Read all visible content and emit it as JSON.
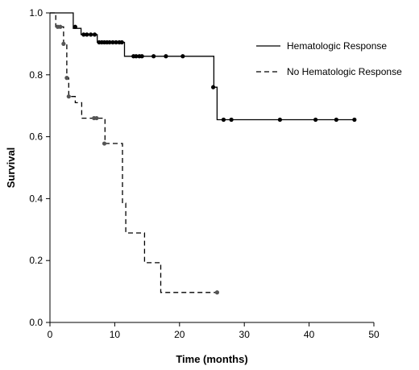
{
  "chart_data": {
    "type": "line",
    "title": "",
    "xlabel": "Time (months)",
    "ylabel": "Survival",
    "xlim": [
      0,
      50
    ],
    "ylim": [
      0,
      1.0
    ],
    "xticks": [
      0,
      10,
      20,
      30,
      40,
      50
    ],
    "yticks": [
      0.0,
      0.2,
      0.4,
      0.6,
      0.8,
      1.0
    ],
    "xtick_labels": [
      "0",
      "10",
      "20",
      "30",
      "40",
      "50"
    ],
    "ytick_labels": [
      "0.0",
      "0.2",
      "0.4",
      "0.6",
      "0.8",
      "1.0"
    ],
    "grid": false,
    "legend_position": "top-right",
    "series": [
      {
        "name": "Hematologic Response",
        "style": "solid",
        "color": "#000000",
        "step_x": [
          0,
          3.6,
          3.6,
          4.8,
          4.8,
          7.3,
          7.3,
          11.5,
          11.5,
          25.3,
          25.3,
          25.8,
          25.8,
          47
        ],
        "step_y": [
          1.0,
          1.0,
          0.95,
          0.95,
          0.93,
          0.93,
          0.905,
          0.905,
          0.86,
          0.86,
          0.76,
          0.76,
          0.655,
          0.655
        ],
        "censor_x": [
          3.9,
          5.2,
          5.7,
          6.3,
          6.9,
          7.6,
          8.0,
          8.4,
          8.8,
          9.2,
          9.7,
          10.2,
          10.7,
          11.1,
          12.9,
          13.3,
          13.8,
          14.2,
          16.0,
          17.9,
          20.5,
          25.2,
          26.8,
          28.0,
          35.5,
          41.0,
          44.2,
          47.0
        ],
        "censor_y": [
          0.955,
          0.93,
          0.93,
          0.93,
          0.93,
          0.905,
          0.905,
          0.905,
          0.905,
          0.905,
          0.905,
          0.905,
          0.905,
          0.905,
          0.86,
          0.86,
          0.86,
          0.86,
          0.86,
          0.86,
          0.86,
          0.76,
          0.655,
          0.655,
          0.655,
          0.655,
          0.655,
          0.655
        ]
      },
      {
        "name": "No Hematologic Response",
        "style": "dashed",
        "color": "#000000",
        "step_x": [
          0,
          0.9,
          0.9,
          2.1,
          2.1,
          2.6,
          2.6,
          2.9,
          2.9,
          3.9,
          3.9,
          4.9,
          4.9,
          6.5,
          6.5,
          8.5,
          8.5,
          11.2,
          11.2,
          11.7,
          11.7,
          14.6,
          14.6,
          17.1,
          17.1,
          25.8
        ],
        "step_y": [
          1.0,
          1.0,
          0.955,
          0.955,
          0.9,
          0.9,
          0.79,
          0.79,
          0.73,
          0.73,
          0.71,
          0.71,
          0.66,
          0.66,
          0.66,
          0.66,
          0.578,
          0.578,
          0.385,
          0.385,
          0.289,
          0.289,
          0.193,
          0.193,
          0.097,
          0.097
        ],
        "censor_x": [
          1.2,
          1.6,
          2.1,
          2.6,
          2.9,
          6.8,
          7.2,
          8.4,
          25.8
        ],
        "censor_y": [
          0.955,
          0.955,
          0.9,
          0.79,
          0.73,
          0.66,
          0.66,
          0.578,
          0.097
        ]
      }
    ]
  }
}
